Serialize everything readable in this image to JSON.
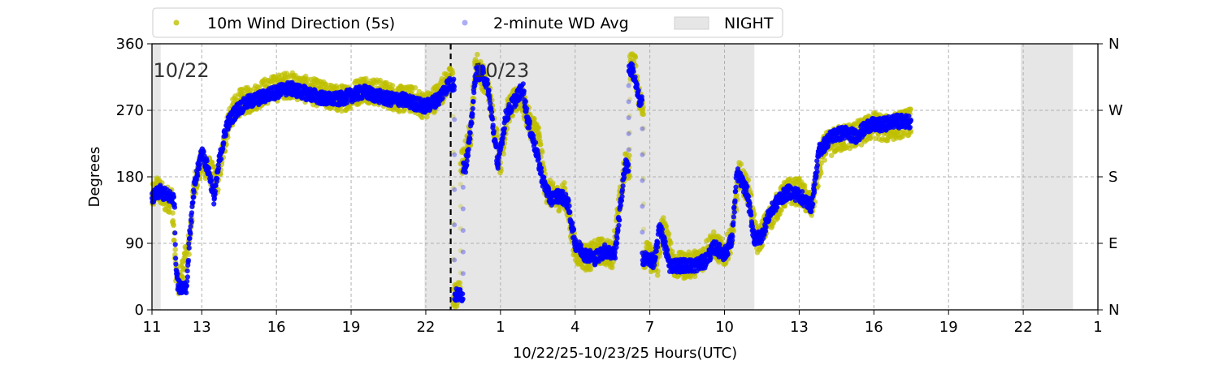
{
  "chart_data": {
    "type": "scatter",
    "xlabel": "10/22/25-10/23/25  Hours(UTC)",
    "ylabel": "Degrees",
    "ylim": [
      0,
      360
    ],
    "xlim_hours": [
      11,
      49
    ],
    "grid": true,
    "legend_placement": "top",
    "x_ticks": [
      {
        "h": 11,
        "label": "11"
      },
      {
        "h": 13,
        "label": "13"
      },
      {
        "h": 16,
        "label": "16"
      },
      {
        "h": 19,
        "label": "19"
      },
      {
        "h": 22,
        "label": "22"
      },
      {
        "h": 25,
        "label": "1"
      },
      {
        "h": 28,
        "label": "4"
      },
      {
        "h": 31,
        "label": "7"
      },
      {
        "h": 34,
        "label": "10"
      },
      {
        "h": 37,
        "label": "13"
      },
      {
        "h": 40,
        "label": "16"
      },
      {
        "h": 43,
        "label": "19"
      },
      {
        "h": 46,
        "label": "22"
      },
      {
        "h": 49,
        "label": "1"
      }
    ],
    "y_ticks": [
      {
        "v": 0,
        "label": "0"
      },
      {
        "v": 90,
        "label": "90"
      },
      {
        "v": 180,
        "label": "180"
      },
      {
        "v": 270,
        "label": "270"
      },
      {
        "v": 360,
        "label": "360"
      }
    ],
    "right_ticks": [
      {
        "v": 0,
        "label": "N"
      },
      {
        "v": 90,
        "label": "E"
      },
      {
        "v": 180,
        "label": "S"
      },
      {
        "v": 270,
        "label": "W"
      },
      {
        "v": 360,
        "label": "N"
      }
    ],
    "night_periods": [
      [
        11.0,
        11.35
      ],
      [
        21.95,
        35.2
      ],
      [
        45.9,
        48.0
      ]
    ],
    "date_divider_hour": 23.0,
    "date_labels": [
      {
        "h": 11.05,
        "text": "10/22"
      },
      {
        "h": 23.9,
        "text": "10/23"
      }
    ],
    "series": [
      {
        "name": "10m Wind Direction (5s)",
        "color": "#bfbf00",
        "spread": 18,
        "points": [
          [
            11.0,
            150
          ],
          [
            11.2,
            165
          ],
          [
            11.5,
            150
          ],
          [
            11.8,
            150
          ],
          [
            11.95,
            60
          ],
          [
            12.05,
            30
          ],
          [
            12.5,
            90
          ],
          [
            12.7,
            170
          ],
          [
            13.0,
            200
          ],
          [
            13.3,
            190
          ],
          [
            13.6,
            170
          ],
          [
            13.8,
            205
          ],
          [
            14.1,
            260
          ],
          [
            14.5,
            280
          ],
          [
            15.0,
            285
          ],
          [
            15.5,
            295
          ],
          [
            16.0,
            300
          ],
          [
            16.5,
            305
          ],
          [
            17.0,
            300
          ],
          [
            17.5,
            295
          ],
          [
            18.0,
            290
          ],
          [
            18.5,
            285
          ],
          [
            19.0,
            290
          ],
          [
            19.5,
            300
          ],
          [
            20.0,
            295
          ],
          [
            20.5,
            290
          ],
          [
            21.0,
            285
          ],
          [
            21.5,
            285
          ],
          [
            22.0,
            275
          ],
          [
            22.5,
            290
          ],
          [
            22.9,
            310
          ],
          [
            23.3,
            20
          ],
          [
            23.5,
            200
          ],
          [
            23.8,
            240
          ],
          [
            24.0,
            335
          ],
          [
            24.5,
            300
          ],
          [
            25.0,
            200
          ],
          [
            25.3,
            270
          ],
          [
            25.8,
            290
          ],
          [
            26.2,
            250
          ],
          [
            26.5,
            240
          ],
          [
            26.8,
            165
          ],
          [
            27.2,
            150
          ],
          [
            27.6,
            155
          ],
          [
            28.0,
            80
          ],
          [
            28.5,
            70
          ],
          [
            29.0,
            80
          ],
          [
            29.5,
            75
          ],
          [
            30.0,
            195
          ],
          [
            30.4,
            330
          ],
          [
            30.6,
            280
          ],
          [
            30.9,
            75
          ],
          [
            31.3,
            60
          ],
          [
            31.5,
            115
          ],
          [
            32.0,
            60
          ],
          [
            32.5,
            60
          ],
          [
            33.0,
            65
          ],
          [
            33.5,
            90
          ],
          [
            34.0,
            75
          ],
          [
            34.3,
            100
          ],
          [
            34.6,
            185
          ],
          [
            35.0,
            155
          ],
          [
            35.3,
            90
          ],
          [
            35.6,
            110
          ],
          [
            36.0,
            135
          ],
          [
            36.5,
            160
          ],
          [
            37.0,
            160
          ],
          [
            37.5,
            140
          ],
          [
            38.0,
            220
          ],
          [
            38.5,
            230
          ],
          [
            39.0,
            235
          ],
          [
            39.5,
            240
          ],
          [
            40.0,
            250
          ],
          [
            40.5,
            245
          ],
          [
            41.0,
            250
          ],
          [
            41.5,
            255
          ]
        ]
      },
      {
        "name": "2-minute WD Avg",
        "color": "#0000ff",
        "spread": 9,
        "points": [
          [
            11.0,
            150
          ],
          [
            11.3,
            160
          ],
          [
            11.6,
            155
          ],
          [
            11.9,
            150
          ],
          [
            11.95,
            70
          ],
          [
            12.05,
            32
          ],
          [
            12.4,
            32
          ],
          [
            12.5,
            95
          ],
          [
            12.7,
            165
          ],
          [
            13.0,
            215
          ],
          [
            13.3,
            185
          ],
          [
            13.5,
            150
          ],
          [
            13.7,
            200
          ],
          [
            14.0,
            250
          ],
          [
            14.4,
            270
          ],
          [
            14.8,
            280
          ],
          [
            15.2,
            285
          ],
          [
            15.6,
            290
          ],
          [
            16.0,
            295
          ],
          [
            16.5,
            300
          ],
          [
            17.0,
            295
          ],
          [
            17.5,
            290
          ],
          [
            18.0,
            285
          ],
          [
            18.5,
            285
          ],
          [
            19.0,
            290
          ],
          [
            19.5,
            295
          ],
          [
            20.0,
            290
          ],
          [
            20.5,
            285
          ],
          [
            21.0,
            285
          ],
          [
            21.5,
            280
          ],
          [
            22.0,
            275
          ],
          [
            22.5,
            285
          ],
          [
            22.9,
            305
          ],
          [
            23.4,
            20
          ],
          [
            23.6,
            195
          ],
          [
            23.8,
            240
          ],
          [
            24.0,
            320
          ],
          [
            24.3,
            320
          ],
          [
            24.5,
            300
          ],
          [
            24.9,
            195
          ],
          [
            25.2,
            260
          ],
          [
            25.5,
            280
          ],
          [
            25.9,
            300
          ],
          [
            26.1,
            255
          ],
          [
            26.4,
            220
          ],
          [
            26.7,
            175
          ],
          [
            27.0,
            150
          ],
          [
            27.4,
            155
          ],
          [
            27.7,
            145
          ],
          [
            28.0,
            90
          ],
          [
            28.4,
            75
          ],
          [
            28.8,
            70
          ],
          [
            29.2,
            80
          ],
          [
            29.6,
            75
          ],
          [
            30.0,
            195
          ],
          [
            30.3,
            325
          ],
          [
            30.6,
            280
          ],
          [
            30.8,
            70
          ],
          [
            31.2,
            65
          ],
          [
            31.4,
            115
          ],
          [
            31.8,
            60
          ],
          [
            32.3,
            60
          ],
          [
            32.8,
            60
          ],
          [
            33.2,
            65
          ],
          [
            33.6,
            85
          ],
          [
            34.0,
            75
          ],
          [
            34.3,
            95
          ],
          [
            34.5,
            185
          ],
          [
            34.9,
            160
          ],
          [
            35.2,
            95
          ],
          [
            35.5,
            100
          ],
          [
            35.8,
            130
          ],
          [
            36.2,
            150
          ],
          [
            36.6,
            160
          ],
          [
            37.0,
            155
          ],
          [
            37.5,
            140
          ],
          [
            37.8,
            215
          ],
          [
            38.3,
            235
          ],
          [
            38.8,
            240
          ],
          [
            39.3,
            235
          ],
          [
            39.8,
            250
          ],
          [
            40.3,
            250
          ],
          [
            40.8,
            255
          ],
          [
            41.5,
            255
          ]
        ]
      }
    ],
    "legend": [
      {
        "label": "10m Wind Direction (5s)",
        "kind": "dot",
        "color": "#bfbf00"
      },
      {
        "label": "2-minute WD Avg",
        "kind": "dot",
        "color": "#7777ee"
      },
      {
        "label": "NIGHT",
        "kind": "patch",
        "color": "#e6e6e6"
      }
    ]
  }
}
